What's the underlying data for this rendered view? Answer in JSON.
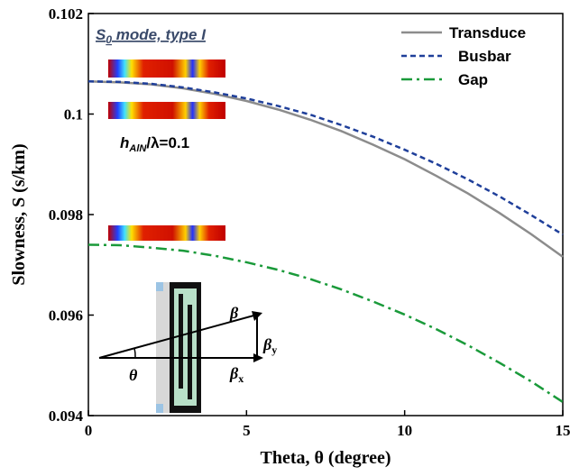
{
  "chart_data": {
    "type": "line",
    "x_label": "Theta, θ (degree)",
    "y_label": "Slowness, S (s/km)",
    "x": [
      0,
      1,
      2,
      3,
      4,
      5,
      6,
      7,
      8,
      9,
      10,
      11,
      12,
      13,
      14,
      15
    ],
    "series": [
      {
        "name": "Transduce",
        "color": "#8c8c8c",
        "dash": "solid",
        "values": [
          0.10065,
          0.10063,
          0.10059,
          0.10051,
          0.1004,
          0.10026,
          0.10009,
          0.09989,
          0.09966,
          0.09939,
          0.0991,
          0.09877,
          0.09842,
          0.09803,
          0.09761,
          0.09716
        ]
      },
      {
        "name": "Busbar",
        "color": "#1f3f9a",
        "dash": "dash",
        "values": [
          0.10065,
          0.10064,
          0.1006,
          0.10053,
          0.10043,
          0.10031,
          0.10016,
          0.09999,
          0.09978,
          0.09955,
          0.09929,
          0.09901,
          0.0987,
          0.09836,
          0.09799,
          0.0976
        ]
      },
      {
        "name": "Gap",
        "color": "#1a9a3a",
        "dash": "dashdot",
        "values": [
          0.0974,
          0.09739,
          0.09734,
          0.09728,
          0.09718,
          0.09705,
          0.0969,
          0.09672,
          0.09651,
          0.09627,
          0.09601,
          0.09572,
          0.0954,
          0.09505,
          0.09468,
          0.09427
        ]
      }
    ],
    "xlim": [
      0,
      15
    ],
    "xticks": [
      0,
      5,
      10,
      15
    ],
    "ylim": [
      0.094,
      0.102
    ],
    "yticks": [
      0.094,
      0.096,
      0.098,
      0.1,
      0.102
    ],
    "legend_position": "upper right",
    "annotations": {
      "mode": [
        "S",
        "0",
        " mode, type I"
      ],
      "ratio": [
        "h",
        "AlN",
        "/λ=0.1"
      ],
      "beta": "β",
      "beta_y": [
        "β",
        "y"
      ],
      "beta_x": [
        "β",
        "x"
      ],
      "theta": "θ"
    }
  }
}
